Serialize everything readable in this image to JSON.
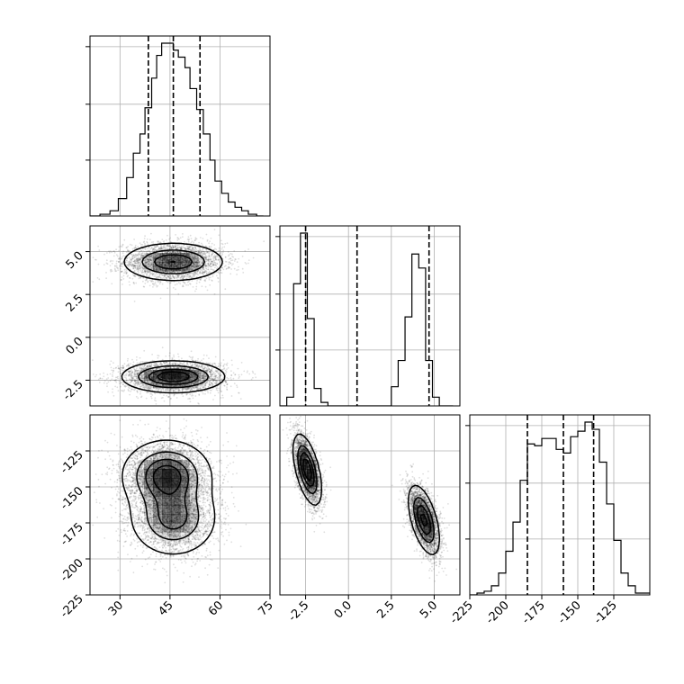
{
  "chart_data": {
    "type": "corner",
    "parameters": 3,
    "grid": true,
    "colors": {
      "hist": "#000000",
      "contour": "#000000",
      "grid": "#b0b0b0",
      "density": "#000000"
    },
    "ticks": {
      "p0": [
        "30",
        "45",
        "60",
        "75"
      ],
      "p1": [
        "5.0",
        "2.5",
        "0.0",
        "-2.5"
      ],
      "p1_x": [
        "-2.5",
        "0.0",
        "2.5",
        "5.0"
      ],
      "p2": [
        "-125",
        "-150",
        "-175",
        "-200",
        "-225"
      ],
      "p2_x": [
        "-225",
        "-200",
        "-175",
        "-150",
        "-125"
      ]
    },
    "ranges": {
      "p0": [
        21,
        75
      ],
      "p1": [
        -4,
        6.5
      ],
      "p2": [
        -225,
        -100
      ]
    },
    "tick_values": {
      "p0": [
        30,
        45,
        60,
        75
      ],
      "p1": [
        5,
        2.5,
        0,
        -2.5
      ],
      "p2": [
        -125,
        -150,
        -175,
        -200,
        -225
      ]
    },
    "quantiles": {
      "p0": [
        38.5,
        46.0,
        54.0
      ],
      "p1": [
        -2.5,
        0.5,
        4.7
      ],
      "p2": [
        -185,
        -160,
        -139
      ]
    },
    "histograms": {
      "p0": {
        "edges": [
          21,
          24,
          27,
          29.5,
          32,
          34,
          36,
          37.5,
          39.5,
          41,
          42.5,
          44,
          46,
          47.5,
          49.5,
          51,
          53,
          55,
          57,
          58.5,
          60.5,
          62.5,
          64.5,
          66.5,
          68.5,
          71,
          73
        ],
        "counts": [
          0,
          1,
          3,
          10,
          22,
          36,
          47,
          62,
          79,
          92,
          99,
          99,
          95,
          91,
          85,
          73,
          61,
          47,
          32,
          20,
          13,
          8,
          5,
          3,
          1,
          0
        ]
      },
      "p1": {
        "edges": [
          -4,
          -3.6,
          -3.2,
          -2.8,
          -2.4,
          -2,
          -1.6,
          -1.2,
          -0.8,
          2.5,
          2.9,
          3.3,
          3.7,
          4.1,
          4.5,
          4.9,
          5.3,
          5.7,
          6.1
        ],
        "counts": [
          0,
          5,
          70,
          99,
          50,
          10,
          2,
          0,
          0,
          11,
          26,
          51,
          87,
          79,
          26,
          5,
          0,
          0
        ]
      },
      "p2": {
        "edges": [
          -225,
          -220,
          -215,
          -210,
          -205,
          -200,
          -195,
          -190,
          -185,
          -180,
          -175,
          -170,
          -165,
          -160,
          -155,
          -150,
          -145,
          -140,
          -135,
          -130,
          -125,
          -120,
          -115,
          -110,
          -105,
          -100
        ],
        "counts": [
          0,
          1,
          2,
          5,
          12,
          24,
          40,
          63,
          83,
          82,
          86,
          86,
          80,
          78,
          87,
          90,
          95,
          91,
          73,
          50,
          30,
          12,
          5,
          1,
          1
        ]
      }
    },
    "modes_2d": {
      "p0_p1": [
        {
          "cx": 46,
          "cy": 4.4,
          "sx": 7.5,
          "sy": 0.55,
          "w": 0.5
        },
        {
          "cx": 46,
          "cy": -2.3,
          "sx": 7.5,
          "sy": 0.45,
          "w": 0.5
        }
      ],
      "p0_p2": [
        {
          "cx": 44,
          "cy": -142,
          "sx": 6.5,
          "sy": 12,
          "w": 0.55
        },
        {
          "cx": 46,
          "cy": -172,
          "sx": 6.5,
          "sy": 13,
          "w": 0.45
        }
      ],
      "p1_p2": [
        {
          "cx": -2.4,
          "cy": -138,
          "sx": 0.4,
          "sy": 12,
          "w": 0.5,
          "rho": -0.55
        },
        {
          "cx": 4.4,
          "cy": -173,
          "sx": 0.45,
          "sy": 12,
          "w": 0.5,
          "rho": -0.55
        }
      ]
    }
  }
}
